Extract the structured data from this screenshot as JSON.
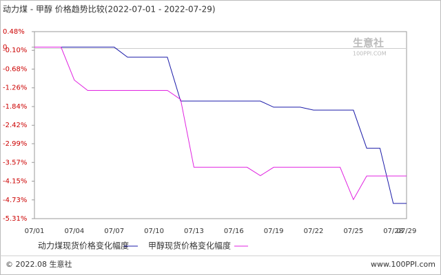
{
  "chart_data": {
    "type": "line",
    "title": "动力煤 - 甲醇 价格趋势比较(2022-07-01 - 2022-07-29)",
    "watermark": "生意社",
    "watermark_sub": "100PPI.COM",
    "copyright": "© 2022.08 生意社",
    "source": "www.100PPI.com",
    "categories": [
      "07/01",
      null,
      null,
      "07/04",
      null,
      null,
      "07/07",
      null,
      null,
      "07/10",
      null,
      null,
      "07/13",
      null,
      null,
      "07/16",
      null,
      null,
      "07/19",
      null,
      null,
      "07/22",
      null,
      null,
      "07/25",
      null,
      null,
      "07/28",
      "07/29"
    ],
    "series": [
      {
        "name": "动力煤现货价格变化幅度",
        "color": "#1a1aa8",
        "values": [
          0,
          0,
          0,
          0,
          0,
          0,
          0,
          -0.31,
          -0.31,
          -0.31,
          -0.31,
          -1.67,
          -1.67,
          -1.67,
          -1.67,
          -1.67,
          -1.67,
          -1.67,
          -1.86,
          -1.86,
          -1.86,
          -1.95,
          -1.95,
          -1.95,
          -1.95,
          -3.13,
          -3.13,
          -4.84,
          -4.84
        ]
      },
      {
        "name": "甲醇现货价格变化幅度",
        "color": "#e020e0",
        "values": [
          0,
          0,
          0,
          -1.02,
          -1.34,
          -1.34,
          -1.34,
          -1.34,
          -1.34,
          -1.34,
          -1.34,
          -1.62,
          -3.72,
          -3.72,
          -3.72,
          -3.72,
          -3.72,
          -3.98,
          -3.72,
          -3.72,
          -3.72,
          -3.72,
          -3.72,
          -3.72,
          -4.72,
          -3.99,
          -3.99,
          -3.99,
          -3.99
        ]
      }
    ],
    "ylim": [
      0.48,
      -5.31
    ],
    "yticks": [
      {
        "value": 0.48,
        "label": "0.48%"
      },
      0,
      {
        "value": -0.1,
        "label": "-0.10%"
      },
      {
        "value": -0.68,
        "label": "-0.68%"
      },
      {
        "value": -1.26,
        "label": "-1.26%"
      },
      {
        "value": -1.84,
        "label": "-1.84%"
      },
      {
        "value": -2.42,
        "label": "-2.42%"
      },
      {
        "value": -2.99,
        "label": "-2.99%"
      },
      {
        "value": -3.57,
        "label": "-3.57%"
      },
      {
        "value": -4.15,
        "label": "-4.15%"
      },
      {
        "value": -4.73,
        "label": "-4.73%"
      },
      {
        "value": -5.31,
        "label": "-5.31%"
      }
    ]
  }
}
